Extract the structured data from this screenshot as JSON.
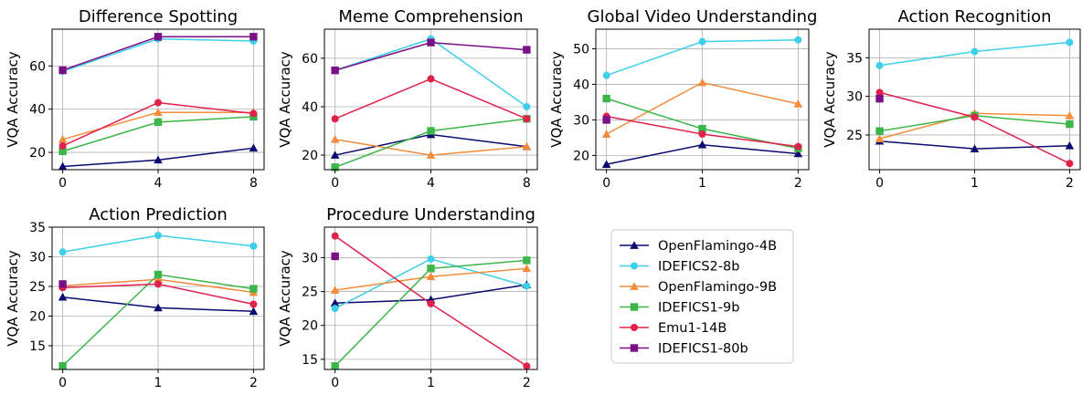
{
  "chart_data": [
    {
      "type": "line",
      "title": "Difference Spotting",
      "xlabel": "",
      "ylabel": "VQA Accuracy",
      "x": [
        0,
        4,
        8
      ],
      "xticks": [
        "0",
        "4",
        "8"
      ],
      "yticks": [
        20,
        40,
        60
      ],
      "ylim": [
        12,
        77
      ],
      "grid": true,
      "series": [
        {
          "name": "OpenFlamingo-4B",
          "values": [
            13.5,
            16.5,
            22.0
          ]
        },
        {
          "name": "IDEFICS2-8b",
          "values": [
            57.5,
            72.5,
            71.5
          ]
        },
        {
          "name": "OpenFlamingo-9B",
          "values": [
            26.0,
            38.5,
            38.5
          ]
        },
        {
          "name": "IDEFICS1-9b",
          "values": [
            20.5,
            34.0,
            36.5
          ]
        },
        {
          "name": "Emu1-14B",
          "values": [
            23.0,
            43.0,
            38.0
          ]
        },
        {
          "name": "IDEFICS1-80b",
          "values": [
            58.0,
            73.5,
            73.5
          ]
        }
      ]
    },
    {
      "type": "line",
      "title": "Meme Comprehension",
      "xlabel": "",
      "ylabel": "VQA Accuracy",
      "x": [
        0,
        4,
        8
      ],
      "xticks": [
        "0",
        "4",
        "8"
      ],
      "yticks": [
        20,
        40,
        60
      ],
      "ylim": [
        14,
        72
      ],
      "grid": true,
      "series": [
        {
          "name": "OpenFlamingo-4B",
          "values": [
            20.0,
            28.5,
            23.5
          ]
        },
        {
          "name": "IDEFICS2-8b",
          "values": [
            55.0,
            68.0,
            40.0
          ]
        },
        {
          "name": "OpenFlamingo-9B",
          "values": [
            26.5,
            20.0,
            23.5
          ]
        },
        {
          "name": "IDEFICS1-9b",
          "values": [
            15.0,
            30.0,
            35.0
          ]
        },
        {
          "name": "Emu1-14B",
          "values": [
            35.0,
            51.5,
            35.0
          ]
        },
        {
          "name": "IDEFICS1-80b",
          "values": [
            55.0,
            66.5,
            63.5
          ]
        }
      ]
    },
    {
      "type": "line",
      "title": "Global Video Understanding",
      "xlabel": "",
      "ylabel": "VQA Accuracy",
      "x": [
        0,
        1,
        2
      ],
      "xticks": [
        "0",
        "1",
        "2"
      ],
      "yticks": [
        20,
        30,
        40,
        50
      ],
      "ylim": [
        16,
        55.5
      ],
      "grid": true,
      "series": [
        {
          "name": "OpenFlamingo-4B",
          "values": [
            17.5,
            23.0,
            20.5
          ]
        },
        {
          "name": "IDEFICS2-8b",
          "values": [
            42.5,
            52.0,
            52.5
          ]
        },
        {
          "name": "OpenFlamingo-9B",
          "values": [
            26.0,
            40.5,
            34.5
          ]
        },
        {
          "name": "IDEFICS1-9b",
          "values": [
            36.0,
            27.5,
            22.0
          ]
        },
        {
          "name": "Emu1-14B",
          "values": [
            31.0,
            26.0,
            22.5
          ]
        },
        {
          "name": "IDEFICS1-80b",
          "values": [
            30.0,
            null,
            null
          ]
        }
      ]
    },
    {
      "type": "line",
      "title": "Action Recognition",
      "xlabel": "",
      "ylabel": "VQA Accuracy",
      "x": [
        0,
        1,
        2
      ],
      "xticks": [
        "0",
        "1",
        "2"
      ],
      "yticks": [
        25,
        30,
        35
      ],
      "ylim": [
        20.5,
        38.7
      ],
      "grid": true,
      "series": [
        {
          "name": "OpenFlamingo-4B",
          "values": [
            24.2,
            23.2,
            23.6
          ]
        },
        {
          "name": "IDEFICS2-8b",
          "values": [
            34.0,
            35.8,
            37.0
          ]
        },
        {
          "name": "OpenFlamingo-9B",
          "values": [
            24.5,
            27.8,
            27.5
          ]
        },
        {
          "name": "IDEFICS1-9b",
          "values": [
            25.5,
            27.5,
            26.4
          ]
        },
        {
          "name": "Emu1-14B",
          "values": [
            30.5,
            27.3,
            21.3
          ]
        },
        {
          "name": "IDEFICS1-80b",
          "values": [
            29.7,
            null,
            null
          ]
        }
      ]
    },
    {
      "type": "line",
      "title": "Action Prediction",
      "xlabel": "",
      "ylabel": "VQA Accuracy",
      "x": [
        0,
        1,
        2
      ],
      "xticks": [
        "0",
        "1",
        "2"
      ],
      "yticks": [
        15,
        20,
        25,
        30,
        35
      ],
      "ylim": [
        11,
        35
      ],
      "grid": true,
      "series": [
        {
          "name": "OpenFlamingo-4B",
          "values": [
            23.2,
            21.4,
            20.8
          ]
        },
        {
          "name": "IDEFICS2-8b",
          "values": [
            30.8,
            33.6,
            31.8
          ]
        },
        {
          "name": "OpenFlamingo-9B",
          "values": [
            25.1,
            26.2,
            24.0
          ]
        },
        {
          "name": "IDEFICS1-9b",
          "values": [
            11.6,
            27.0,
            24.6
          ]
        },
        {
          "name": "Emu1-14B",
          "values": [
            24.8,
            25.4,
            22.0
          ]
        },
        {
          "name": "IDEFICS1-80b",
          "values": [
            25.4,
            null,
            null
          ]
        }
      ]
    },
    {
      "type": "line",
      "title": "Procedure Understanding",
      "xlabel": "",
      "ylabel": "VQA Accuracy",
      "x": [
        0,
        1,
        2
      ],
      "xticks": [
        "0",
        "1",
        "2"
      ],
      "yticks": [
        15,
        20,
        25,
        30
      ],
      "ylim": [
        13.5,
        34.5
      ],
      "grid": true,
      "series": [
        {
          "name": "OpenFlamingo-4B",
          "values": [
            23.3,
            23.8,
            26.0
          ]
        },
        {
          "name": "IDEFICS2-8b",
          "values": [
            22.5,
            29.8,
            25.8
          ]
        },
        {
          "name": "OpenFlamingo-9B",
          "values": [
            25.2,
            27.2,
            28.4
          ]
        },
        {
          "name": "IDEFICS1-9b",
          "values": [
            14.0,
            28.4,
            29.6
          ]
        },
        {
          "name": "Emu1-14B",
          "values": [
            33.2,
            23.2,
            14.0
          ]
        },
        {
          "name": "IDEFICS1-80b",
          "values": [
            30.2,
            null,
            null
          ]
        }
      ]
    }
  ],
  "legend": {
    "placement": "lower-right",
    "entries": [
      {
        "name": "OpenFlamingo-4B",
        "color": "#0a0a70",
        "marker": "triangle"
      },
      {
        "name": "IDEFICS2-8b",
        "color": "#3fcfe8",
        "marker": "circle"
      },
      {
        "name": "OpenFlamingo-9B",
        "color": "#f28c3c",
        "marker": "triangle"
      },
      {
        "name": "IDEFICS1-9b",
        "color": "#3cb54a",
        "marker": "square"
      },
      {
        "name": "Emu1-14B",
        "color": "#e0214a",
        "marker": "circle"
      },
      {
        "name": "IDEFICS1-80b",
        "color": "#7a0f86",
        "marker": "square"
      }
    ]
  }
}
